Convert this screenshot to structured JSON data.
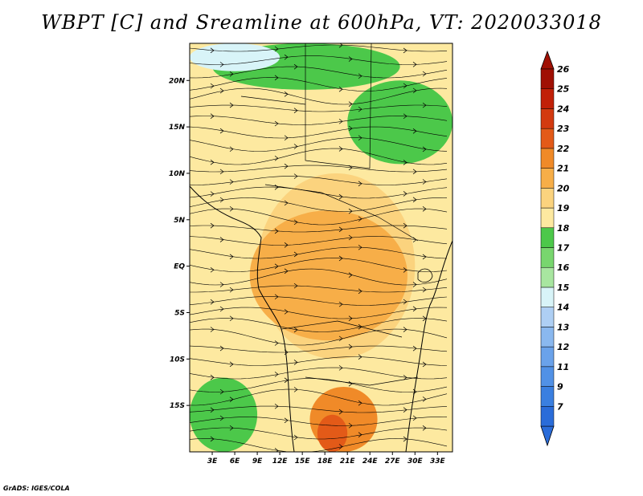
{
  "title": "WBPT [C] and Sreamline at 600hPa, VT: 2020033018",
  "credit": "GrADS: IGES/COLA",
  "map": {
    "lon_range": [
      0,
      35
    ],
    "lat_range": [
      -20,
      24
    ],
    "lat_ticks": [
      {
        "value": 20,
        "label": "20N"
      },
      {
        "value": 15,
        "label": "15N"
      },
      {
        "value": 10,
        "label": "10N"
      },
      {
        "value": 5,
        "label": "5N"
      },
      {
        "value": 0,
        "label": "EQ"
      },
      {
        "value": -5,
        "label": "5S"
      },
      {
        "value": -10,
        "label": "10S"
      },
      {
        "value": -15,
        "label": "15S"
      }
    ],
    "lon_ticks": [
      {
        "value": 3,
        "label": "3E"
      },
      {
        "value": 6,
        "label": "6E"
      },
      {
        "value": 9,
        "label": "9E"
      },
      {
        "value": 12,
        "label": "12E"
      },
      {
        "value": 15,
        "label": "15E"
      },
      {
        "value": 18,
        "label": "18E"
      },
      {
        "value": 21,
        "label": "21E"
      },
      {
        "value": 24,
        "label": "24E"
      },
      {
        "value": 27,
        "label": "27E"
      },
      {
        "value": 30,
        "label": "30E"
      },
      {
        "value": 33,
        "label": "33E"
      }
    ],
    "fill_regions": [
      {
        "level": "19",
        "color": "#fde9a0",
        "lon": [
          0,
          35
        ],
        "lat": [
          -20,
          24
        ]
      },
      {
        "level": "20",
        "color": "#fbd37e",
        "lon": [
          9,
          30
        ],
        "lat": [
          -10,
          10
        ]
      },
      {
        "level": "21",
        "color": "#f7ae48",
        "lon": [
          8,
          29
        ],
        "lat": [
          -8,
          6
        ]
      },
      {
        "level": "22",
        "color": "#f08a28",
        "lon": [
          16,
          25
        ],
        "lat": [
          -20,
          -13
        ]
      },
      {
        "level": "23",
        "color": "#e35a18",
        "lon": [
          17,
          21
        ],
        "lat": [
          -20,
          -16
        ]
      },
      {
        "level": "18",
        "color": "#4cc84a",
        "lon": [
          0,
          9
        ],
        "lat": [
          -20,
          -12
        ]
      },
      {
        "level": "18",
        "color": "#4cc84a",
        "lon": [
          21,
          35
        ],
        "lat": [
          11,
          20
        ]
      },
      {
        "level": "18",
        "color": "#4cc84a",
        "lon": [
          3,
          28
        ],
        "lat": [
          19,
          24
        ]
      },
      {
        "level": "15",
        "color": "#d8f4f8",
        "lon": [
          0,
          12
        ],
        "lat": [
          21,
          24
        ]
      }
    ],
    "streamlines": "westerly-flow"
  },
  "colorbar": {
    "levels": [
      {
        "label": "7",
        "color": "#2a6cd9"
      },
      {
        "label": "9",
        "color": "#3a7fe0"
      },
      {
        "label": "11",
        "color": "#5191e6"
      },
      {
        "label": "12",
        "color": "#6aa2ea"
      },
      {
        "label": "13",
        "color": "#8ab8ef"
      },
      {
        "label": "14",
        "color": "#aecff4"
      },
      {
        "label": "15",
        "color": "#d8f4f8"
      },
      {
        "label": "16",
        "color": "#a8e6a0"
      },
      {
        "label": "17",
        "color": "#78d66e"
      },
      {
        "label": "18",
        "color": "#4cc84a"
      },
      {
        "label": "19",
        "color": "#fde9a0"
      },
      {
        "label": "20",
        "color": "#fbd37e"
      },
      {
        "label": "21",
        "color": "#f7ae48"
      },
      {
        "label": "22",
        "color": "#f08a28"
      },
      {
        "label": "23",
        "color": "#e35a18"
      },
      {
        "label": "24",
        "color": "#d33a10"
      },
      {
        "label": "25",
        "color": "#c12008"
      },
      {
        "label": "26",
        "color": "#a01004"
      }
    ],
    "bottom_arrow_color": "#2a6cd9",
    "top_arrow_color": "#a01004"
  }
}
